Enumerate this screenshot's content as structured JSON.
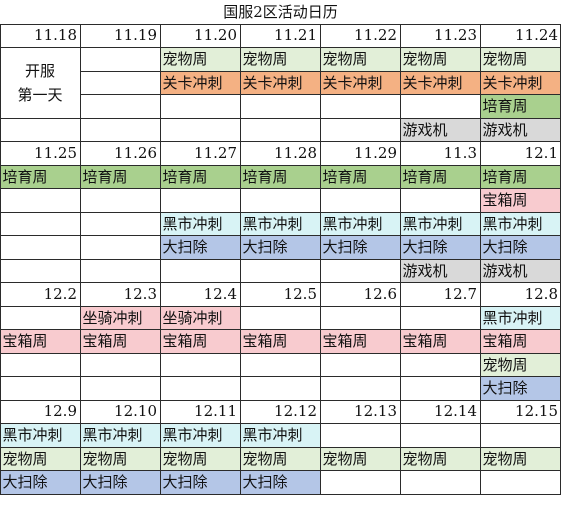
{
  "title": "国服2区活动日历",
  "colors": {
    "宠物周": "#e2efd8",
    "关卡冲刺": "#f4b183",
    "培育周": "#a9d08e",
    "游戏机": "#d9d9d9",
    "宝箱周": "#f8cbcf",
    "黑市冲刺": "#d8f3f5",
    "大扫除": "#b4c6e7",
    "坐骑冲刺": "#f8cbcf"
  },
  "first_day_note": [
    "开服",
    "第一天"
  ],
  "weeks": [
    {
      "dates": [
        "11.18",
        "11.19",
        "11.20",
        "11.21",
        "11.22",
        "11.23",
        "11.24"
      ],
      "rows": [
        [
          "",
          "",
          "宠物周",
          "宠物周",
          "宠物周",
          "宠物周",
          "宠物周"
        ],
        [
          "",
          "",
          "关卡冲刺",
          "关卡冲刺",
          "关卡冲刺",
          "关卡冲刺",
          "关卡冲刺"
        ],
        [
          "",
          "",
          "",
          "",
          "",
          "",
          "培育周"
        ],
        [
          "",
          "",
          "",
          "",
          "",
          "游戏机",
          "游戏机"
        ]
      ]
    },
    {
      "dates": [
        "11.25",
        "11.26",
        "11.27",
        "11.28",
        "11.29",
        "11.3",
        "12.1"
      ],
      "rows": [
        [
          "培育周",
          "培育周",
          "培育周",
          "培育周",
          "培育周",
          "培育周",
          "培育周"
        ],
        [
          "",
          "",
          "",
          "",
          "",
          "",
          "宝箱周"
        ],
        [
          "",
          "",
          "黑市冲刺",
          "黑市冲刺",
          "黑市冲刺",
          "黑市冲刺",
          "黑市冲刺"
        ],
        [
          "",
          "",
          "大扫除",
          "大扫除",
          "大扫除",
          "大扫除",
          "大扫除"
        ],
        [
          "",
          "",
          "",
          "",
          "",
          "游戏机",
          "游戏机"
        ]
      ]
    },
    {
      "dates": [
        "12.2",
        "12.3",
        "12.4",
        "12.5",
        "12.6",
        "12.7",
        "12.8"
      ],
      "rows": [
        [
          "",
          "坐骑冲刺",
          "坐骑冲刺",
          "",
          "",
          "",
          "黑市冲刺"
        ],
        [
          "宝箱周",
          "宝箱周",
          "宝箱周",
          "宝箱周",
          "宝箱周",
          "宝箱周",
          "宝箱周"
        ],
        [
          "",
          "",
          "",
          "",
          "",
          "",
          "宠物周"
        ],
        [
          "",
          "",
          "",
          "",
          "",
          "",
          "大扫除"
        ]
      ]
    },
    {
      "dates": [
        "12.9",
        "12.10",
        "12.11",
        "12.12",
        "12.13",
        "12.14",
        "12.15"
      ],
      "rows": [
        [
          "黑市冲刺",
          "黑市冲刺",
          "黑市冲刺",
          "黑市冲刺",
          "",
          "",
          ""
        ],
        [
          "宠物周",
          "宠物周",
          "宠物周",
          "宠物周",
          "宠物周",
          "宠物周",
          "宠物周"
        ],
        [
          "大扫除",
          "大扫除",
          "大扫除",
          "大扫除",
          "",
          "",
          ""
        ]
      ]
    }
  ]
}
